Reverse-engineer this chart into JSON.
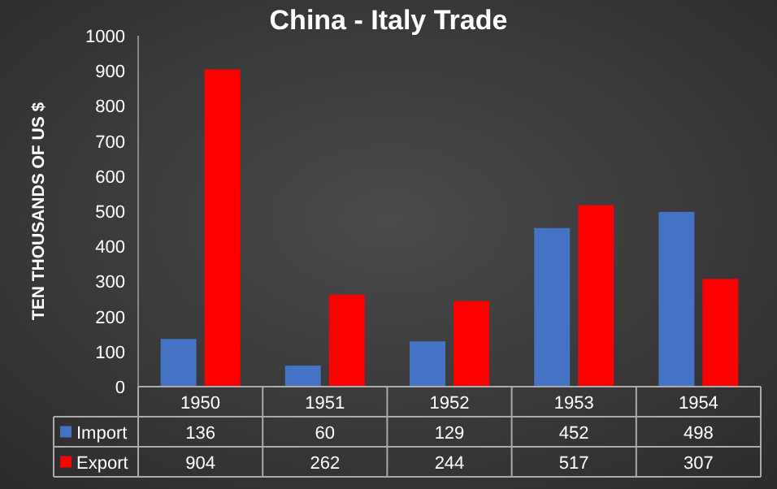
{
  "chart_data": {
    "type": "bar",
    "title": "China - Italy Trade",
    "ylabel": "TEN THOUSANDS OF US $",
    "categories": [
      "1950",
      "1951",
      "1952",
      "1953",
      "1954"
    ],
    "series": [
      {
        "name": "Import",
        "color": "#4472c4",
        "values": [
          136,
          60,
          129,
          452,
          498
        ]
      },
      {
        "name": "Export",
        "color": "#ff0000",
        "values": [
          904,
          262,
          244,
          517,
          307
        ]
      }
    ],
    "ylim": [
      0,
      1000
    ],
    "yticks": [
      0,
      100,
      200,
      300,
      400,
      500,
      600,
      700,
      800,
      900,
      1000
    ],
    "data_labels": true,
    "legend": "bottom"
  }
}
